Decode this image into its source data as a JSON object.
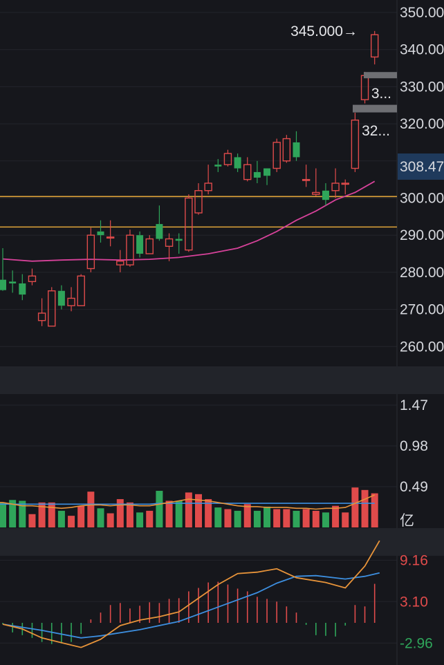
{
  "chart_data": [
    {
      "type": "candlestick",
      "panel": "price",
      "ylim": [
        254,
        350
      ],
      "ticks": [
        {
          "value": 350,
          "label": "350.00"
        },
        {
          "value": 340,
          "label": "340.00"
        },
        {
          "value": 330,
          "label": "330.00"
        },
        {
          "value": 320,
          "label": "320.00"
        },
        {
          "value": 300,
          "label": "300.00"
        },
        {
          "value": 290,
          "label": "290.00"
        },
        {
          "value": 280,
          "label": "280.00"
        },
        {
          "value": 270,
          "label": "270.00"
        },
        {
          "value": 260,
          "label": "260.00"
        }
      ],
      "current_price": {
        "value": 308.47,
        "label": "308.47"
      },
      "max_annotation": {
        "value": 345.0,
        "label": "345.000→"
      },
      "truncated_labels": [
        {
          "value": 328.2,
          "label": "3..."
        },
        {
          "value": 318.2,
          "label": "32..."
        }
      ],
      "horizontal_lines": [
        300.4,
        292.2
      ],
      "ohlc": [
        [
          278,
          275.2,
          286.5,
          275
        ],
        [
          277.5,
          277,
          280.5,
          274.5
        ],
        [
          277,
          274,
          279.5,
          272.5
        ],
        [
          277.5,
          279,
          281,
          276.5
        ],
        [
          267,
          269,
          273,
          265.5
        ],
        [
          265.5,
          275,
          276,
          265.5
        ],
        [
          275,
          271,
          276.5,
          270
        ],
        [
          271,
          273,
          276,
          269.5
        ],
        [
          271,
          279,
          279.5,
          271
        ],
        [
          281,
          290,
          292,
          280
        ],
        [
          291,
          290,
          294,
          288
        ],
        [
          289.5,
          289.5,
          294,
          287
        ],
        [
          282,
          283,
          286,
          280
        ],
        [
          282,
          290,
          291.5,
          281.5
        ],
        [
          290,
          285,
          291,
          284
        ],
        [
          285,
          289,
          290,
          285
        ],
        [
          293,
          289,
          298,
          288.5
        ],
        [
          287,
          289,
          290.5,
          283
        ],
        [
          289,
          288.5,
          290.5,
          285
        ],
        [
          286,
          300,
          301,
          285.5
        ],
        [
          296,
          302,
          304,
          295.5
        ],
        [
          302,
          304,
          309,
          301
        ],
        [
          309,
          308.5,
          310.5,
          307
        ],
        [
          309,
          312,
          313,
          308.5
        ],
        [
          311,
          308,
          312,
          307
        ],
        [
          305,
          309,
          311,
          304.5
        ],
        [
          307,
          305.5,
          310,
          304
        ],
        [
          308,
          306,
          308,
          303.5
        ],
        [
          308,
          315,
          316,
          307
        ],
        [
          310,
          316,
          317,
          309.5
        ],
        [
          315,
          311,
          318,
          310
        ],
        [
          305,
          305,
          309,
          303
        ],
        [
          301,
          301.5,
          308,
          300.5
        ],
        [
          302,
          299.5,
          304,
          298
        ],
        [
          302,
          304,
          308,
          300
        ],
        [
          304,
          304,
          305,
          301
        ],
        [
          308,
          321,
          323,
          307
        ],
        [
          326.5,
          333,
          334,
          325.5
        ],
        [
          338,
          344,
          345,
          336
        ]
      ],
      "ma": [
        [
          0,
          283.6
        ],
        [
          3,
          283
        ],
        [
          6,
          283.3
        ],
        [
          9,
          283.5
        ],
        [
          12,
          283.3
        ],
        [
          15,
          283.5
        ],
        [
          18,
          284
        ],
        [
          21,
          285
        ],
        [
          24,
          286.5
        ],
        [
          26,
          288.5
        ],
        [
          28,
          291
        ],
        [
          30,
          294
        ],
        [
          32,
          296.5
        ],
        [
          34,
          299.5
        ],
        [
          36,
          301.5
        ],
        [
          38,
          304.5
        ]
      ]
    },
    {
      "type": "bar",
      "panel": "volume",
      "ylim": [
        0,
        1.6
      ],
      "ticks": [
        {
          "value": 1.47,
          "label": "1.47"
        },
        {
          "value": 0.98,
          "label": "0.98"
        },
        {
          "value": 0.49,
          "label": "0.49"
        }
      ],
      "unit_label": "亿",
      "volumes": [
        0.3,
        0.33,
        0.32,
        0.16,
        0.3,
        0.3,
        0.2,
        0.14,
        0.26,
        0.43,
        0.23,
        0.17,
        0.34,
        0.3,
        0.18,
        0.2,
        0.44,
        0.32,
        0.32,
        0.42,
        0.4,
        0.34,
        0.24,
        0.22,
        0.2,
        0.28,
        0.2,
        0.25,
        0.22,
        0.22,
        0.2,
        0.22,
        0.2,
        0.18,
        0.26,
        0.18,
        0.48,
        0.45,
        0.41
      ],
      "ma1": [
        0.3,
        0.28,
        0.26,
        0.26,
        0.25,
        0.24,
        0.23,
        0.24,
        0.26,
        0.27,
        0.27,
        0.26,
        0.27,
        0.27,
        0.26,
        0.26,
        0.28,
        0.3,
        0.32,
        0.34,
        0.33,
        0.32,
        0.3,
        0.28,
        0.26,
        0.25,
        0.25,
        0.24,
        0.24,
        0.24,
        0.23,
        0.23,
        0.22,
        0.23,
        0.23,
        0.24,
        0.29,
        0.34,
        0.39
      ],
      "ma2": [
        0.28,
        0.28,
        0.28,
        0.28,
        0.28,
        0.28,
        0.28,
        0.28,
        0.28,
        0.28,
        0.28,
        0.28,
        0.28,
        0.28,
        0.28,
        0.28,
        0.29,
        0.29,
        0.29,
        0.29,
        0.29,
        0.29,
        0.29,
        0.29,
        0.29,
        0.29,
        0.29,
        0.29,
        0.29,
        0.29,
        0.29,
        0.29,
        0.29,
        0.29,
        0.29,
        0.29,
        0.29,
        0.29,
        0.29
      ]
    },
    {
      "type": "macd",
      "panel": "macd",
      "ylim": [
        -5,
        12
      ],
      "ticks": [
        {
          "value": 9.16,
          "label": "9.16",
          "color": "#e04b4b"
        },
        {
          "value": 3.1,
          "label": "3.10",
          "color": "#e04b4b"
        },
        {
          "value": -2.96,
          "label": "-2.96",
          "color": "#2fa55a"
        }
      ],
      "dif": [
        [
          0,
          -0.2
        ],
        [
          2,
          -0.9
        ],
        [
          4,
          -2.2
        ],
        [
          6,
          -2.9
        ],
        [
          8,
          -3.6
        ],
        [
          10,
          -2.4
        ],
        [
          12,
          -0.4
        ],
        [
          14,
          0.4
        ],
        [
          16,
          0.9
        ],
        [
          18,
          1.6
        ],
        [
          20,
          3.6
        ],
        [
          22,
          5.6
        ],
        [
          24,
          7.2
        ],
        [
          26,
          7.4
        ],
        [
          28,
          7.9
        ],
        [
          30,
          6.6
        ],
        [
          33,
          5.9
        ],
        [
          35,
          5.1
        ],
        [
          37,
          8.3
        ],
        [
          38.5,
          12
        ]
      ],
      "dea": [
        [
          0,
          -0.2
        ],
        [
          4,
          -1.1
        ],
        [
          8,
          -2.2
        ],
        [
          10,
          -1.9
        ],
        [
          14,
          -1.0
        ],
        [
          18,
          0.2
        ],
        [
          22,
          2.3
        ],
        [
          26,
          4.4
        ],
        [
          28,
          5.8
        ],
        [
          30,
          6.8
        ],
        [
          32,
          6.9
        ],
        [
          35,
          6.4
        ],
        [
          37,
          6.8
        ],
        [
          38.5,
          7.3
        ]
      ],
      "hist": [
        -0.2,
        -1.4,
        -1.8,
        -2.2,
        -2.8,
        -3.1,
        -3.0,
        -2.8,
        -1.6,
        0.5,
        1.5,
        2.6,
        2.9,
        2.1,
        2.5,
        3.0,
        2.9,
        3.5,
        3.6,
        4.6,
        5.1,
        5.9,
        6.0,
        5.6,
        5.0,
        4.6,
        3.8,
        3.5,
        3.1,
        2.4,
        1.5,
        -0.3,
        -1.8,
        -1.9,
        -2.0,
        -0.4,
        2.6,
        2.4,
        5.7
      ]
    }
  ],
  "colors": {
    "up": "#e04b4b",
    "down": "#2fa55a",
    "ma_price": "#d7429a",
    "vol_ma1": "#e8943a",
    "vol_ma2": "#3d8fe0",
    "dif": "#e8943a",
    "dea": "#3d8fe0",
    "hline": "#e2a63a",
    "background": "#16171c",
    "separator": "#22242a",
    "current_price_bg": "#1f3a5c",
    "grey_bar": "#6e6f73"
  }
}
